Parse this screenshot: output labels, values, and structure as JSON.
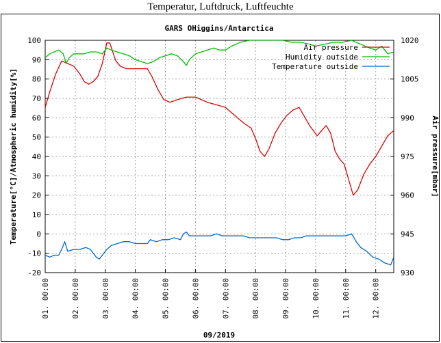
{
  "page": {
    "title": "Temperatur, Luftdruck, Luftfeuchte"
  },
  "chart_data": {
    "type": "line",
    "title": "GARS OHiggins/Antarctica",
    "xlabel": "09/2019",
    "ylabel_left": "Temperature[°C]/Atmospheric humidity[%]",
    "ylabel_right": "Air pressure[mbar]",
    "x_range_days": [
      1,
      12.6
    ],
    "x_ticks": [
      "01. 00:00",
      "02. 00:00",
      "03. 00:00",
      "04. 00:00",
      "05. 00:00",
      "06. 00:00",
      "07. 00:00",
      "08. 00:00",
      "09. 00:00",
      "10. 00:00",
      "11. 00:00",
      "12. 00:00"
    ],
    "y_left": {
      "min": -20,
      "max": 100,
      "ticks": [
        "-20",
        "-10",
        "0",
        "10",
        "20",
        "30",
        "40",
        "50",
        "60",
        "70",
        "80",
        "90",
        "100"
      ]
    },
    "y_right": {
      "min": 930,
      "max": 1020,
      "ticks": [
        "930",
        "945",
        "960",
        "975",
        "990",
        "1005",
        "1020"
      ]
    },
    "grid": true,
    "legend_position": "top-right",
    "series": [
      {
        "name": "Air pressure",
        "axis": "right",
        "color": "#dd0000",
        "points": [
          [
            1.0,
            994
          ],
          [
            1.15,
            1000
          ],
          [
            1.35,
            1007
          ],
          [
            1.55,
            1012
          ],
          [
            1.75,
            1011
          ],
          [
            1.95,
            1010
          ],
          [
            2.15,
            1007
          ],
          [
            2.3,
            1004
          ],
          [
            2.45,
            1003
          ],
          [
            2.6,
            1004
          ],
          [
            2.75,
            1006
          ],
          [
            2.9,
            1011
          ],
          [
            3.05,
            1019
          ],
          [
            3.15,
            1019
          ],
          [
            3.35,
            1012
          ],
          [
            3.5,
            1010
          ],
          [
            3.7,
            1009
          ],
          [
            3.9,
            1009
          ],
          [
            4.1,
            1009
          ],
          [
            4.4,
            1009
          ],
          [
            4.55,
            1006
          ],
          [
            4.75,
            1001
          ],
          [
            4.95,
            997
          ],
          [
            5.15,
            996
          ],
          [
            5.4,
            997
          ],
          [
            5.7,
            998
          ],
          [
            6.0,
            998
          ],
          [
            6.2,
            997
          ],
          [
            6.4,
            996
          ],
          [
            6.7,
            995
          ],
          [
            7.0,
            994
          ],
          [
            7.3,
            991
          ],
          [
            7.6,
            988
          ],
          [
            7.85,
            986
          ],
          [
            8.0,
            982
          ],
          [
            8.15,
            977
          ],
          [
            8.3,
            975
          ],
          [
            8.45,
            978
          ],
          [
            8.65,
            984
          ],
          [
            8.85,
            988
          ],
          [
            9.05,
            991
          ],
          [
            9.25,
            993
          ],
          [
            9.45,
            994
          ],
          [
            9.6,
            991
          ],
          [
            9.8,
            987
          ],
          [
            10.05,
            983
          ],
          [
            10.2,
            985
          ],
          [
            10.35,
            987
          ],
          [
            10.5,
            984
          ],
          [
            10.65,
            977
          ],
          [
            10.8,
            974
          ],
          [
            10.95,
            972
          ],
          [
            11.1,
            966
          ],
          [
            11.25,
            960
          ],
          [
            11.4,
            962
          ],
          [
            11.6,
            968
          ],
          [
            11.8,
            972
          ],
          [
            12.0,
            975
          ],
          [
            12.2,
            979
          ],
          [
            12.4,
            983
          ],
          [
            12.6,
            985
          ]
        ]
      },
      {
        "name": "Humidity outside",
        "axis": "left",
        "color": "#00bb00",
        "points": [
          [
            1.0,
            91
          ],
          [
            1.15,
            93
          ],
          [
            1.3,
            94
          ],
          [
            1.45,
            95
          ],
          [
            1.6,
            93
          ],
          [
            1.7,
            88
          ],
          [
            1.8,
            91
          ],
          [
            1.95,
            93
          ],
          [
            2.1,
            93
          ],
          [
            2.3,
            93
          ],
          [
            2.5,
            94
          ],
          [
            2.7,
            94
          ],
          [
            2.9,
            93
          ],
          [
            3.05,
            96
          ],
          [
            3.2,
            95
          ],
          [
            3.4,
            94
          ],
          [
            3.6,
            93
          ],
          [
            3.8,
            92
          ],
          [
            4.0,
            90
          ],
          [
            4.2,
            89
          ],
          [
            4.4,
            88
          ],
          [
            4.6,
            89
          ],
          [
            4.8,
            91
          ],
          [
            5.0,
            92
          ],
          [
            5.2,
            93
          ],
          [
            5.4,
            92
          ],
          [
            5.6,
            89
          ],
          [
            5.7,
            87
          ],
          [
            5.8,
            90
          ],
          [
            6.0,
            93
          ],
          [
            6.2,
            94
          ],
          [
            6.4,
            95
          ],
          [
            6.6,
            96
          ],
          [
            6.8,
            95
          ],
          [
            7.0,
            95
          ],
          [
            7.2,
            97
          ],
          [
            7.5,
            99
          ],
          [
            7.8,
            100
          ],
          [
            8.1,
            100
          ],
          [
            8.5,
            100
          ],
          [
            8.9,
            100
          ],
          [
            9.2,
            99
          ],
          [
            9.5,
            99
          ],
          [
            9.8,
            98
          ],
          [
            10.0,
            97
          ],
          [
            10.3,
            98
          ],
          [
            10.6,
            99
          ],
          [
            10.9,
            99
          ],
          [
            11.2,
            100
          ],
          [
            11.5,
            98
          ],
          [
            11.8,
            96
          ],
          [
            12.0,
            95
          ],
          [
            12.2,
            97
          ],
          [
            12.4,
            93
          ],
          [
            12.6,
            94
          ]
        ]
      },
      {
        "name": "Temperature outside",
        "axis": "left",
        "color": "#0066cc",
        "points": [
          [
            1.0,
            -11
          ],
          [
            1.15,
            -12
          ],
          [
            1.3,
            -11
          ],
          [
            1.45,
            -11
          ],
          [
            1.55,
            -8
          ],
          [
            1.65,
            -4
          ],
          [
            1.75,
            -9
          ],
          [
            1.95,
            -8
          ],
          [
            2.15,
            -8
          ],
          [
            2.35,
            -7
          ],
          [
            2.5,
            -8
          ],
          [
            2.6,
            -10
          ],
          [
            2.7,
            -12
          ],
          [
            2.8,
            -13
          ],
          [
            2.9,
            -11
          ],
          [
            3.05,
            -8
          ],
          [
            3.2,
            -6
          ],
          [
            3.4,
            -5
          ],
          [
            3.6,
            -4
          ],
          [
            3.8,
            -4
          ],
          [
            4.0,
            -5
          ],
          [
            4.2,
            -5
          ],
          [
            4.4,
            -5
          ],
          [
            4.5,
            -3
          ],
          [
            4.7,
            -4
          ],
          [
            4.9,
            -3
          ],
          [
            5.1,
            -3
          ],
          [
            5.3,
            -2
          ],
          [
            5.5,
            -3
          ],
          [
            5.6,
            0
          ],
          [
            5.7,
            1
          ],
          [
            5.8,
            -1
          ],
          [
            6.0,
            -1
          ],
          [
            6.3,
            -1
          ],
          [
            6.5,
            -1
          ],
          [
            6.7,
            0
          ],
          [
            6.9,
            -1
          ],
          [
            7.1,
            -1
          ],
          [
            7.4,
            -1
          ],
          [
            7.6,
            -1
          ],
          [
            7.8,
            -2
          ],
          [
            8.0,
            -2
          ],
          [
            8.2,
            -2
          ],
          [
            8.5,
            -2
          ],
          [
            8.7,
            -2
          ],
          [
            8.9,
            -3
          ],
          [
            9.1,
            -3
          ],
          [
            9.3,
            -2
          ],
          [
            9.5,
            -2
          ],
          [
            9.7,
            -1
          ],
          [
            9.9,
            -1
          ],
          [
            10.1,
            -1
          ],
          [
            10.4,
            -1
          ],
          [
            10.6,
            -1
          ],
          [
            10.8,
            -1
          ],
          [
            11.0,
            -1
          ],
          [
            11.2,
            0
          ],
          [
            11.35,
            -4
          ],
          [
            11.5,
            -7
          ],
          [
            11.7,
            -9
          ],
          [
            11.9,
            -12
          ],
          [
            12.1,
            -13
          ],
          [
            12.3,
            -15
          ],
          [
            12.5,
            -16
          ],
          [
            12.6,
            -12
          ]
        ]
      }
    ]
  }
}
